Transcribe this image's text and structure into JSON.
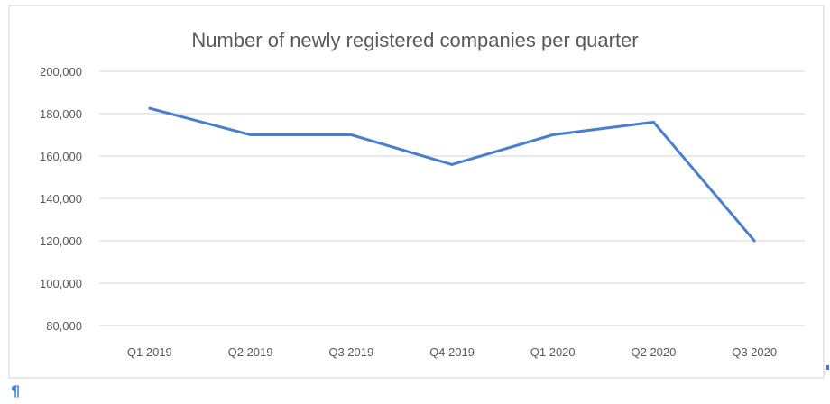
{
  "chart_data": {
    "type": "line",
    "title": "Number of newly registered companies per quarter",
    "xlabel": "",
    "ylabel": "",
    "categories": [
      "Q1 2019",
      "Q2 2019",
      "Q3 2019",
      "Q4 2019",
      "Q1 2020",
      "Q2 2020",
      "Q3 2020"
    ],
    "series": [
      {
        "name": "Newly registered companies",
        "values": [
          182500,
          170000,
          170000,
          156000,
          170000,
          176000,
          120000
        ],
        "color": "#4a7fd0"
      }
    ],
    "ylim": [
      80000,
      200000
    ],
    "yticks": [
      80000,
      100000,
      120000,
      140000,
      160000,
      180000,
      200000
    ],
    "ytick_labels": [
      "80,000",
      "100,000",
      "120,000",
      "140,000",
      "160,000",
      "180,000",
      "200,000"
    ],
    "grid": true,
    "legend": "none",
    "gridline_color": "#e3e3e3",
    "text_color": "#595959"
  },
  "document": {
    "paragraph_mark": "¶"
  }
}
